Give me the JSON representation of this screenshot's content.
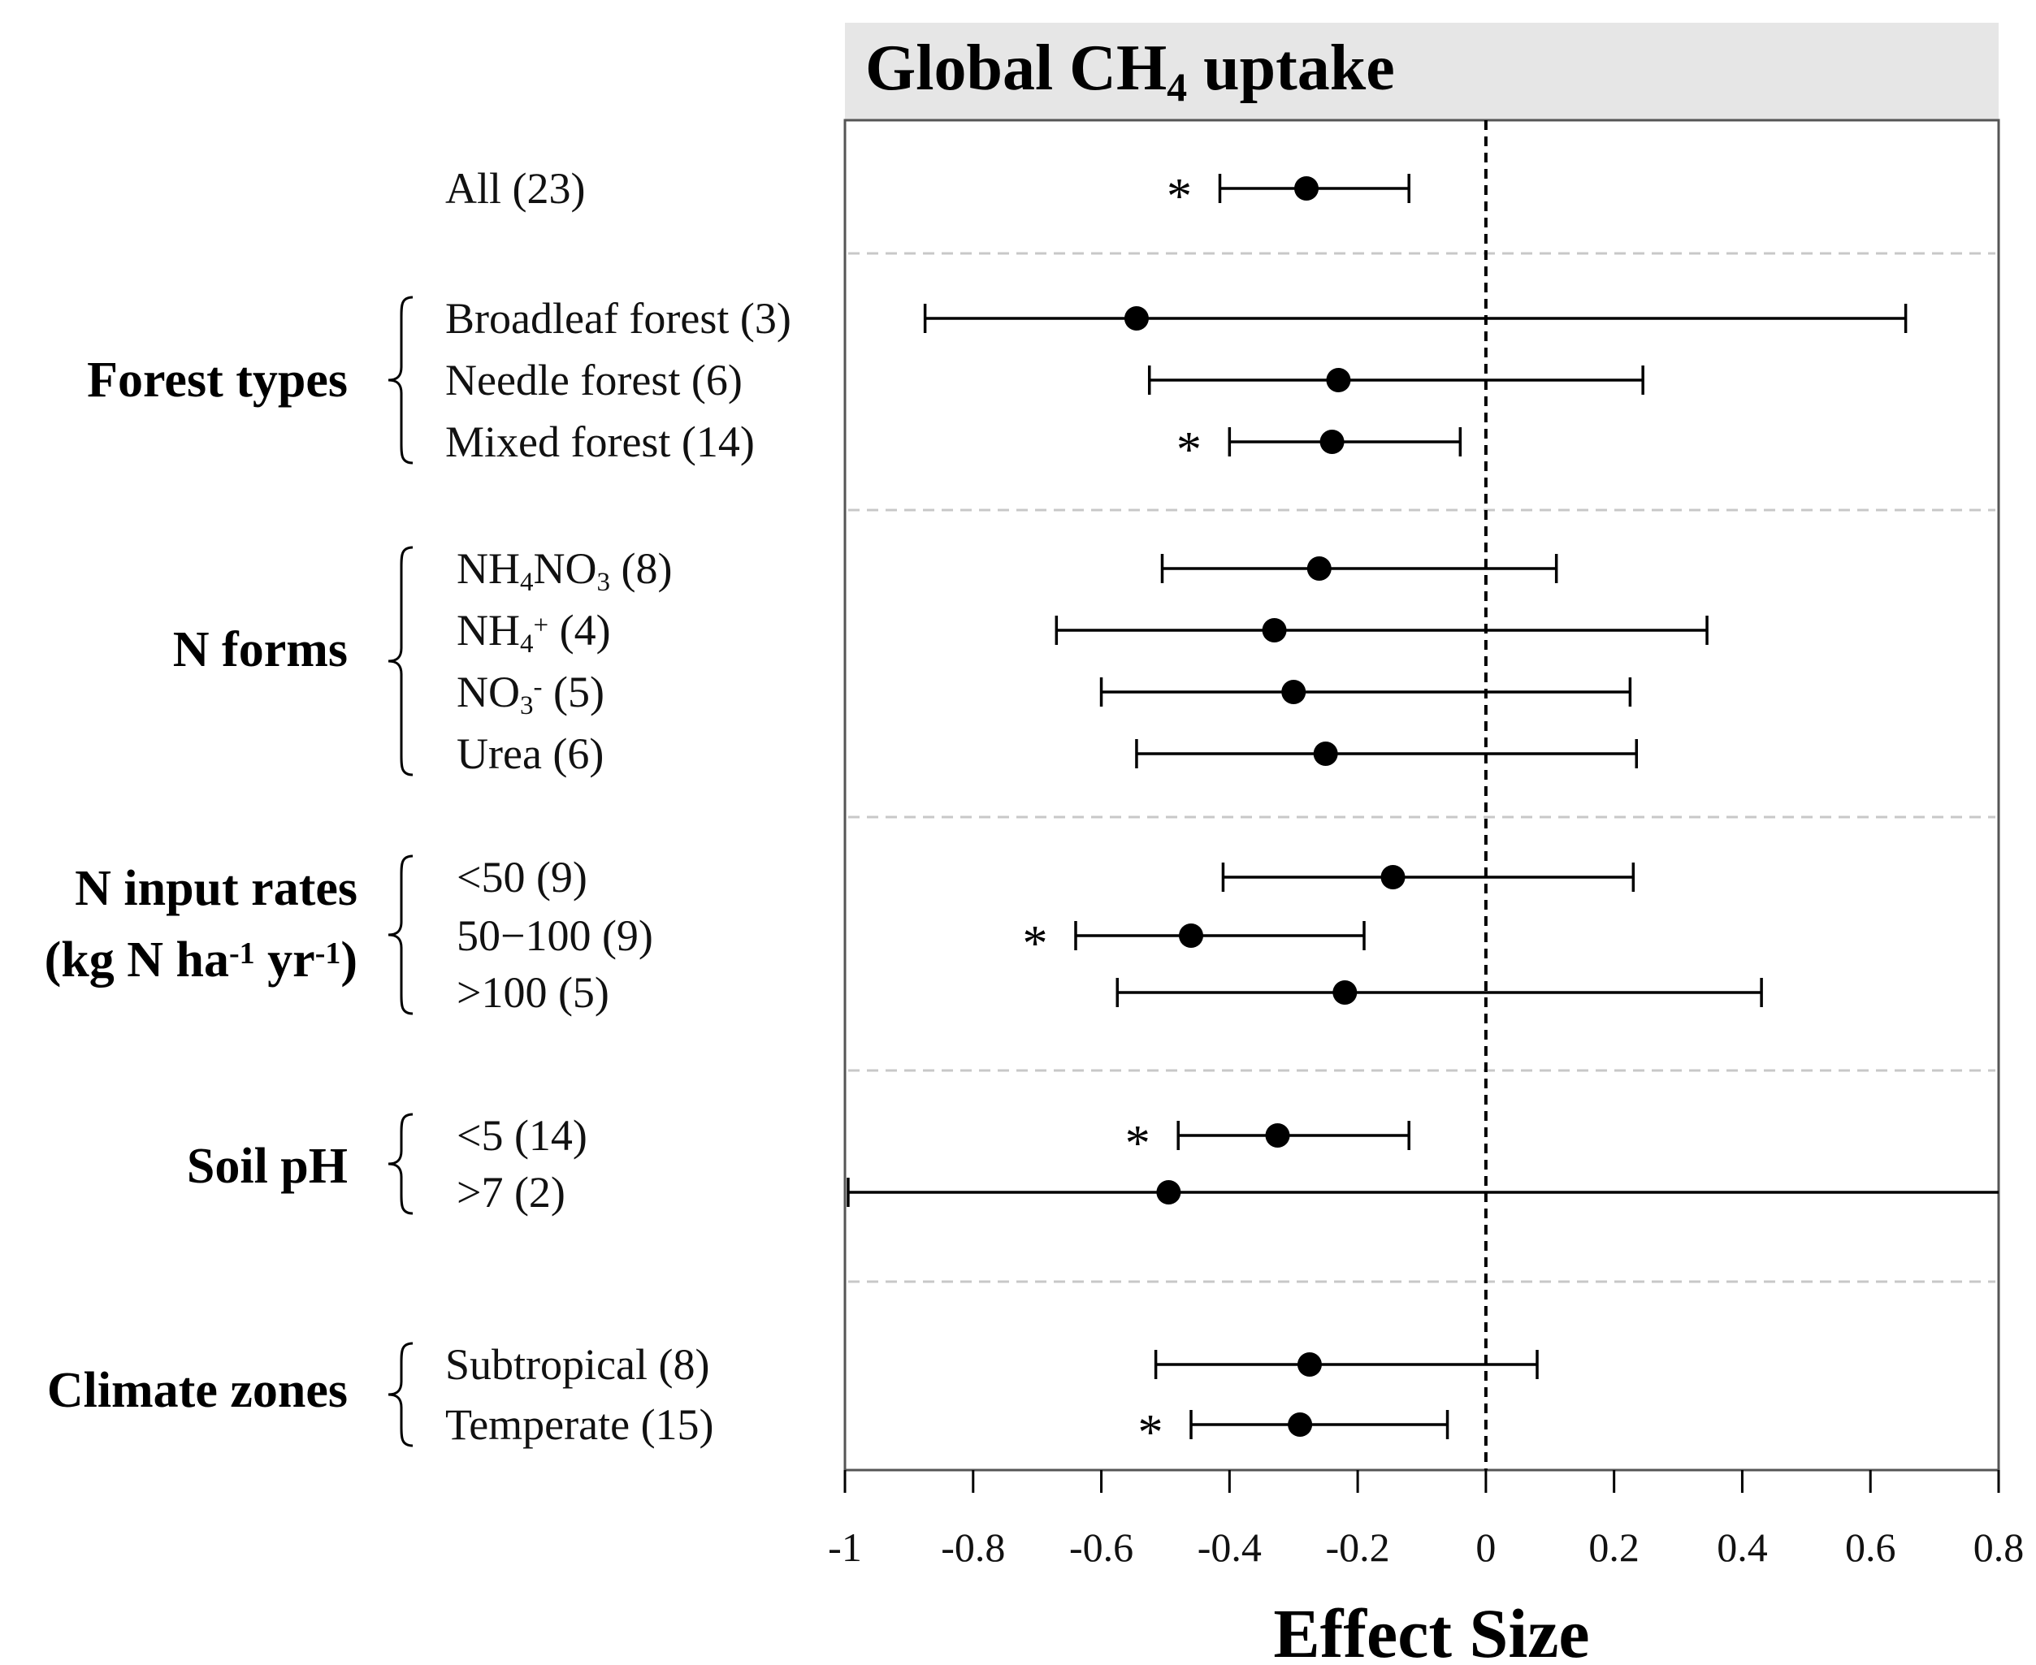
{
  "chart_data": {
    "type": "scatter",
    "title_parts": [
      "Global CH",
      "4",
      " uptake"
    ],
    "xlabel": "Effect Size",
    "xlim": [
      -1,
      0.8
    ],
    "xticks": [
      -1,
      -0.8,
      -0.6,
      -0.4,
      -0.2,
      0,
      0.2,
      0.4,
      0.6,
      0.8
    ],
    "reference_line": 0,
    "grid": false,
    "significance_marker": "*",
    "groups": [
      {
        "label": "",
        "brace": false,
        "items": [
          {
            "label_parts": [
              [
                "All (23)",
                "n"
              ]
            ],
            "mean": -0.28,
            "lower": -0.415,
            "upper": -0.12,
            "significant": true
          }
        ]
      },
      {
        "label": "Forest types",
        "brace": true,
        "items": [
          {
            "label_parts": [
              [
                "Broadleaf forest (3)",
                "n"
              ]
            ],
            "mean": -0.545,
            "lower": -0.875,
            "upper": 0.655,
            "significant": false
          },
          {
            "label_parts": [
              [
                "Needle forest (6)",
                "n"
              ]
            ],
            "mean": -0.23,
            "lower": -0.525,
            "upper": 0.245,
            "significant": false
          },
          {
            "label_parts": [
              [
                "Mixed forest (14)",
                "n"
              ]
            ],
            "mean": -0.24,
            "lower": -0.4,
            "upper": -0.04,
            "significant": true
          }
        ]
      },
      {
        "label": "N forms",
        "brace": true,
        "items": [
          {
            "label_parts": [
              [
                "NH",
                "n"
              ],
              [
                "4",
                "sub"
              ],
              [
                "NO",
                "n"
              ],
              [
                "3",
                "sub"
              ],
              [
                " (8)",
                "n"
              ]
            ],
            "mean": -0.26,
            "lower": -0.505,
            "upper": 0.11,
            "significant": false
          },
          {
            "label_parts": [
              [
                "NH",
                "n"
              ],
              [
                "4",
                "sub"
              ],
              [
                "+",
                "sup"
              ],
              [
                " (4)",
                "n"
              ]
            ],
            "mean": -0.33,
            "lower": -0.67,
            "upper": 0.345,
            "significant": false
          },
          {
            "label_parts": [
              [
                "NO",
                "n"
              ],
              [
                "3",
                "sub"
              ],
              [
                "-",
                "sup"
              ],
              [
                " (5)",
                "n"
              ]
            ],
            "mean": -0.3,
            "lower": -0.6,
            "upper": 0.225,
            "significant": false
          },
          {
            "label_parts": [
              [
                "Urea (6)",
                "n"
              ]
            ],
            "mean": -0.25,
            "lower": -0.545,
            "upper": 0.235,
            "significant": false
          }
        ]
      },
      {
        "label_lines": [
          [
            [
              "N input rates",
              "n"
            ]
          ],
          [
            [
              "(kg N ha",
              "n"
            ],
            [
              "-1",
              "sup"
            ],
            [
              " yr",
              "n"
            ],
            [
              "-1",
              "sup"
            ],
            [
              ")",
              "n"
            ]
          ]
        ],
        "brace": true,
        "items": [
          {
            "label_parts": [
              [
                "<50 (9)",
                "n"
              ]
            ],
            "mean": -0.145,
            "lower": -0.41,
            "upper": 0.23,
            "significant": false
          },
          {
            "label_parts": [
              [
                "50−100 (9)",
                "n"
              ]
            ],
            "mean": -0.46,
            "lower": -0.64,
            "upper": -0.19,
            "significant": true
          },
          {
            "label_parts": [
              [
                ">100 (5)",
                "n"
              ]
            ],
            "mean": -0.22,
            "lower": -0.575,
            "upper": 0.43,
            "significant": false
          }
        ]
      },
      {
        "label": "Soil pH",
        "brace": true,
        "items": [
          {
            "label_parts": [
              [
                "<5 (14)",
                "n"
              ]
            ],
            "mean": -0.325,
            "lower": -0.48,
            "upper": -0.12,
            "significant": true
          },
          {
            "label_parts": [
              [
                ">7 (2)",
                "n"
              ]
            ],
            "mean": -0.495,
            "lower": -0.995,
            "upper": 0.8,
            "significant": false
          }
        ]
      },
      {
        "label": "Climate zones",
        "brace": true,
        "items": [
          {
            "label_parts": [
              [
                "Subtropical (8)",
                "n"
              ]
            ],
            "mean": -0.275,
            "lower": -0.515,
            "upper": 0.08,
            "significant": false
          },
          {
            "label_parts": [
              [
                "Temperate (15)",
                "n"
              ]
            ],
            "mean": -0.29,
            "lower": -0.46,
            "upper": -0.06,
            "significant": true
          }
        ]
      }
    ]
  }
}
